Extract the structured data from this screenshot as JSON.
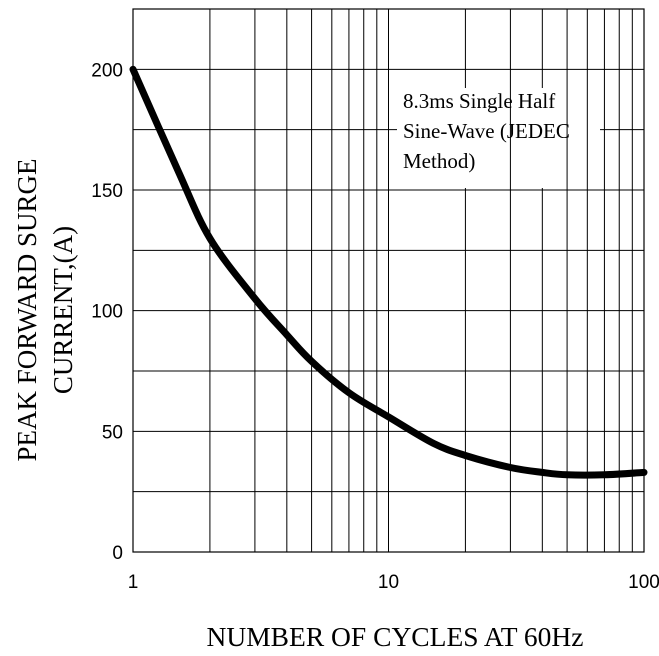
{
  "chart_data": {
    "type": "line",
    "title": "",
    "xlabel": "NUMBER OF CYCLES AT 60Hz",
    "ylabel_lines": [
      "PEAK FORWARD SURGE",
      "CURRENT,(A)"
    ],
    "xscale": "log",
    "xlim": [
      1,
      100
    ],
    "ylim": [
      0,
      225
    ],
    "grid": true,
    "legend": "none",
    "x_ticks": [
      {
        "value": 1,
        "label": "1"
      },
      {
        "value": 10,
        "label": "10"
      },
      {
        "value": 100,
        "label": "100"
      }
    ],
    "y_ticks": [
      {
        "value": 0,
        "label": "0"
      },
      {
        "value": 50,
        "label": "50"
      },
      {
        "value": 100,
        "label": "100"
      },
      {
        "value": 150,
        "label": "150"
      },
      {
        "value": 200,
        "label": "200"
      }
    ],
    "annotation_lines": [
      "8.3ms Single Half",
      "Sine-Wave (JEDEC",
      "Method)"
    ],
    "series": [
      {
        "x": [
          1,
          1.5,
          2,
          3,
          4,
          5,
          7,
          10,
          15,
          20,
          30,
          40,
          50,
          70,
          100
        ],
        "y": [
          200,
          158,
          130,
          105,
          90,
          79,
          66,
          56,
          45,
          40,
          35,
          33,
          32,
          32,
          33
        ],
        "color": "#000000"
      }
    ]
  }
}
